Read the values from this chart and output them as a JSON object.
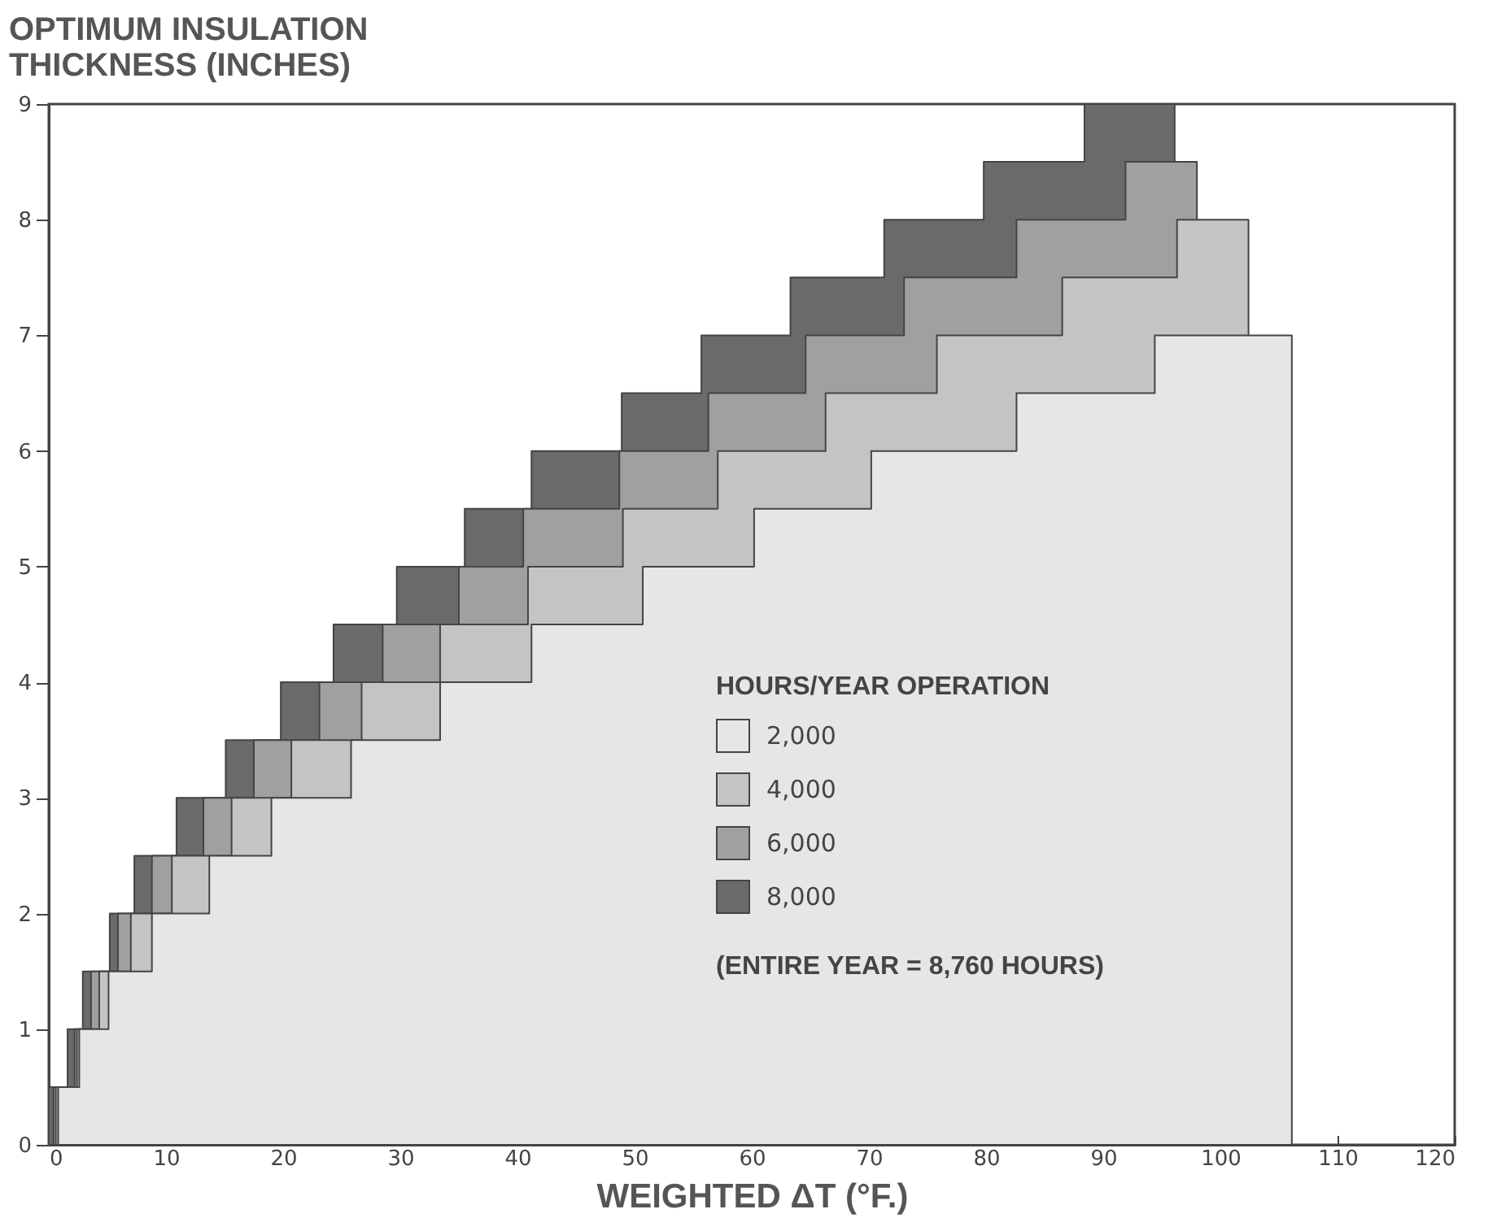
{
  "chart_data": {
    "type": "area",
    "ylabel": "OPTIMUM INSULATION THICKNESS (INCHES)",
    "xlabel": "WEIGHTED ΔT (°F.)",
    "legend_title": "HOURS/YEAR OPERATION",
    "legend": "bottom right",
    "annotations": [
      "(ENTIRE YEAR = 8,760 HOURS)"
    ],
    "xlim": [
      0,
      120
    ],
    "xticks": [
      0,
      10,
      20,
      30,
      40,
      50,
      60,
      70,
      80,
      90,
      100,
      110,
      120
    ],
    "ylim": [
      0,
      9
    ],
    "yticks": [
      0,
      1,
      2,
      3,
      4,
      5,
      6,
      7,
      8,
      9
    ],
    "series": [
      {
        "name": "2,000",
        "color": "#e6e6e6",
        "x": [
          0.8,
          2.6,
          5.1,
          8.8,
          13.7,
          19.0,
          25.8,
          33.4,
          41.2,
          50.7,
          60.2,
          70.2,
          82.6,
          94.4,
          106.1
        ],
        "values": [
          0.5,
          1,
          1.5,
          2,
          2.5,
          3,
          3.5,
          4,
          4.5,
          5,
          5.5,
          6,
          6.5,
          7,
          7
        ]
      },
      {
        "name": "4,000",
        "color": "#c4c4c4",
        "x": [
          0.6,
          2.4,
          4.3,
          7.0,
          10.5,
          15.6,
          20.7,
          26.7,
          33.4,
          40.9,
          49.0,
          57.1,
          66.3,
          75.8,
          86.5,
          96.3,
          102.4
        ],
        "values": [
          0.5,
          1,
          1.5,
          2,
          2.5,
          3,
          3.5,
          4,
          4.5,
          5,
          5.5,
          6,
          6.5,
          7,
          7.5,
          8,
          8
        ]
      },
      {
        "name": "6,000",
        "color": "#a0a0a0",
        "x": [
          0.4,
          2.2,
          3.6,
          5.9,
          8.8,
          13.2,
          17.5,
          23.1,
          28.5,
          35.0,
          40.5,
          48.7,
          56.3,
          64.6,
          73.0,
          82.6,
          91.9,
          98.0
        ],
        "values": [
          0.5,
          1,
          1.5,
          2,
          2.5,
          3,
          3.5,
          4,
          4.5,
          5,
          5.5,
          6,
          6.5,
          7,
          7.5,
          8,
          8.5,
          8.5
        ]
      },
      {
        "name": "8,000",
        "color": "#6a6a6a",
        "x": [
          0,
          1.6,
          2.9,
          5.2,
          7.3,
          10.9,
          15.1,
          19.8,
          24.3,
          29.7,
          35.5,
          41.2,
          48.9,
          55.7,
          63.3,
          71.3,
          79.8,
          88.4,
          96.1
        ],
        "values": [
          0.5,
          1,
          1.5,
          2,
          2.5,
          3,
          3.5,
          4,
          4.5,
          5,
          5.5,
          6,
          6.5,
          7,
          7.5,
          8,
          8.5,
          9,
          9
        ]
      }
    ]
  }
}
